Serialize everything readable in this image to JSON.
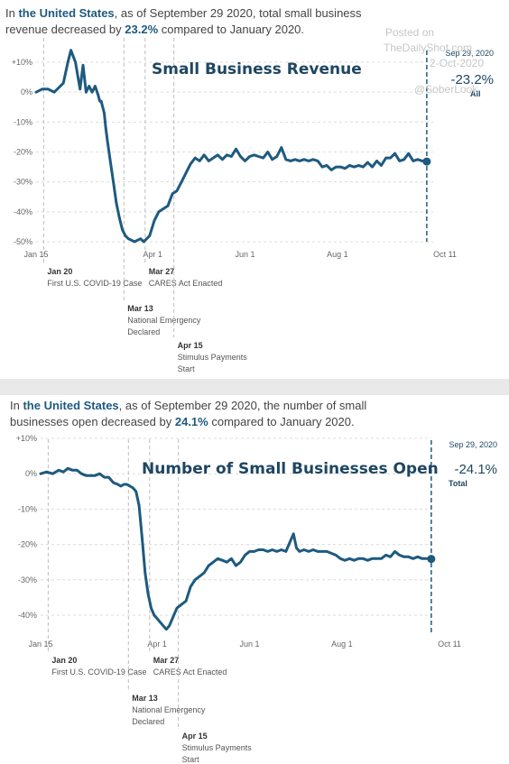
{
  "panel1": {
    "intro": {
      "prefix": "In ",
      "place": "the United States",
      "mid": ", as of September 29 2020, total small business revenue decreased by ",
      "pct": "23.2%",
      "suffix": " compared to January 2020."
    }
  },
  "panel2": {
    "intro": {
      "prefix": "In ",
      "place": "the United States",
      "mid": ", as of September 29 2020, the number of small businesses open decreased by ",
      "pct": "24.1%",
      "suffix": " compared to January 2020."
    }
  },
  "watermark": {
    "posted": "Posted on",
    "site": "TheDailyShot.com",
    "date": "2-Oct-2020",
    "handle": "@SoberLook"
  },
  "events": [
    {
      "day": 20,
      "date": "Jan 20",
      "lines": [
        "First U.S. COVID-19 Case"
      ]
    },
    {
      "day": 73,
      "date": "Mar 13",
      "lines": [
        "National Emergency",
        "Declared"
      ]
    },
    {
      "day": 87,
      "date": "Mar 27",
      "lines": [
        "CARES Act Enacted"
      ]
    },
    {
      "day": 106,
      "date": "Apr 15",
      "lines": [
        "Stimulus Payments",
        "Start"
      ]
    }
  ],
  "chart_data": [
    {
      "type": "line",
      "title": "Small Business Revenue",
      "x_ticks": [
        {
          "day": 15,
          "label": "Jan 15"
        },
        {
          "day": 92,
          "label": "Apr 1"
        },
        {
          "day": 153,
          "label": "Jun 1"
        },
        {
          "day": 214,
          "label": "Aug 1"
        },
        {
          "day": 285,
          "label": "Oct 11"
        }
      ],
      "y_ticks": [
        10,
        0,
        -10,
        -20,
        -30,
        -40,
        -50
      ],
      "ylim": [
        -50,
        10
      ],
      "xlim": [
        15,
        285
      ],
      "end": {
        "day": 273,
        "date": "Sep 29, 2020",
        "value": -23.2,
        "label": "-23.2%",
        "sub": "All"
      },
      "color": "#1e5a7f",
      "series": [
        {
          "x": [
            15,
            19,
            23,
            27,
            31,
            33,
            36,
            38,
            41,
            44,
            46,
            48,
            50,
            52,
            54,
            56,
            57,
            58,
            60,
            61,
            62,
            64,
            66,
            68,
            70,
            72,
            74,
            76,
            78,
            80,
            82,
            84,
            86,
            88,
            90,
            93,
            96,
            99,
            102,
            105,
            108,
            111,
            114,
            117,
            120,
            123,
            126,
            129,
            132,
            135,
            138,
            141,
            144,
            147,
            150,
            153,
            156,
            159,
            162,
            165,
            168,
            171,
            174,
            177,
            180,
            183,
            186,
            189,
            192,
            195,
            198,
            201,
            204,
            207,
            210,
            213,
            216,
            219,
            222,
            225,
            228,
            231,
            234,
            237,
            240,
            243,
            246,
            249,
            252,
            255,
            258,
            261,
            264,
            267,
            270,
            273
          ],
          "y": [
            0,
            1,
            1,
            0,
            2,
            3,
            10,
            14,
            10,
            1,
            9,
            0,
            2,
            0,
            2,
            -1,
            -3,
            -3,
            -7,
            -12,
            -16,
            -23,
            -30,
            -37,
            -42,
            -46,
            -48,
            -49,
            -49.5,
            -50,
            -49.5,
            -49,
            -50,
            -49,
            -48,
            -43,
            -40,
            -39,
            -38,
            -34,
            -33,
            -30,
            -27,
            -24,
            -22,
            -23,
            -21,
            -23,
            -22,
            -21,
            -22.5,
            -21,
            -21.5,
            -19,
            -21.5,
            -23,
            -21.5,
            -21,
            -21.5,
            -22,
            -20,
            -22.5,
            -21.5,
            -18.5,
            -22.5,
            -23,
            -22.5,
            -23,
            -22.5,
            -23,
            -22.5,
            -23,
            -25,
            -24.5,
            -26,
            -25,
            -25,
            -25.5,
            -24.5,
            -25,
            -24.5,
            -25,
            -23.5,
            -25,
            -23,
            -24.5,
            -22,
            -22,
            -20.5,
            -23,
            -22.5,
            -20.5,
            -23,
            -22.5,
            -23,
            -23.2
          ]
        }
      ]
    },
    {
      "type": "line",
      "title": "Number of Small Businesses Open",
      "x_ticks": [
        {
          "day": 15,
          "label": "Jan 15"
        },
        {
          "day": 92,
          "label": "Apr 1"
        },
        {
          "day": 153,
          "label": "Jun 1"
        },
        {
          "day": 214,
          "label": "Aug 1"
        },
        {
          "day": 285,
          "label": "Oct 11"
        }
      ],
      "y_ticks": [
        10,
        0,
        -10,
        -20,
        -30,
        -40
      ],
      "ylim": [
        -46,
        10
      ],
      "xlim": [
        15,
        285
      ],
      "end": {
        "day": 273,
        "date": "Sep 29, 2020",
        "value": -24.1,
        "label": "-24.1%",
        "sub": "Total"
      },
      "color": "#1e5a7f",
      "series": [
        {
          "x": [
            15,
            19,
            23,
            27,
            30,
            33,
            36,
            39,
            42,
            45,
            48,
            51,
            54,
            57,
            60,
            63,
            66,
            68,
            70,
            72,
            74,
            76,
            78,
            80,
            82,
            84,
            86,
            88,
            90,
            92,
            94,
            96,
            98,
            100,
            102,
            105,
            108,
            111,
            114,
            117,
            120,
            123,
            126,
            129,
            132,
            135,
            138,
            141,
            144,
            147,
            150,
            153,
            156,
            159,
            162,
            165,
            168,
            171,
            174,
            177,
            180,
            182,
            184,
            186,
            189,
            192,
            195,
            198,
            201,
            204,
            207,
            210,
            213,
            216,
            219,
            222,
            225,
            228,
            231,
            234,
            237,
            240,
            243,
            246,
            249,
            252,
            255,
            258,
            261,
            264,
            267,
            270,
            273
          ],
          "y": [
            0,
            0.5,
            0,
            1,
            0.5,
            1.5,
            1,
            1,
            0,
            -0.5,
            -0.5,
            -0.5,
            0,
            -1,
            -1,
            -2.5,
            -3,
            -3.5,
            -3,
            -3,
            -3.5,
            -4,
            -5,
            -9,
            -18,
            -28,
            -34,
            -38,
            -40,
            -41,
            -42,
            -43,
            -44,
            -43,
            -41,
            -38,
            -37,
            -36,
            -32,
            -30,
            -29,
            -28,
            -26,
            -25,
            -24,
            -24.5,
            -25,
            -24,
            -26,
            -25,
            -23,
            -22,
            -22,
            -21.5,
            -21.5,
            -22,
            -21.5,
            -22,
            -21.5,
            -22,
            -19,
            -17,
            -21,
            -22,
            -21.5,
            -22,
            -21.5,
            -22,
            -22,
            -22,
            -22.5,
            -23,
            -24,
            -24.5,
            -24,
            -24.5,
            -24,
            -24,
            -24.5,
            -24,
            -24,
            -24,
            -23,
            -23.5,
            -22,
            -23,
            -23.5,
            -23.5,
            -24,
            -23.5,
            -24,
            -24,
            -24.1
          ]
        }
      ]
    }
  ]
}
